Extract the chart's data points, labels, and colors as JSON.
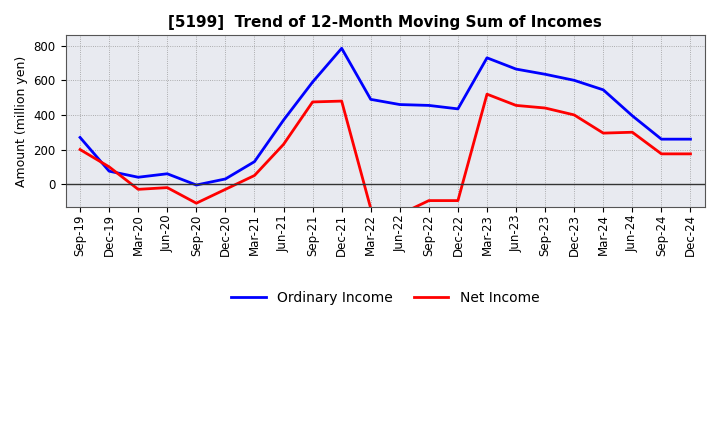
{
  "title": "[5199]  Trend of 12-Month Moving Sum of Incomes",
  "ylabel": "Amount (million yen)",
  "xlim_labels": [
    "Sep-19",
    "Dec-19",
    "Mar-20",
    "Jun-20",
    "Sep-20",
    "Dec-20",
    "Mar-21",
    "Jun-21",
    "Sep-21",
    "Dec-21",
    "Mar-22",
    "Jun-22",
    "Sep-22",
    "Dec-22",
    "Mar-23",
    "Jun-23",
    "Sep-23",
    "Dec-23",
    "Mar-24",
    "Jun-24",
    "Sep-24",
    "Dec-24"
  ],
  "ordinary_income": [
    270,
    75,
    40,
    60,
    -5,
    30,
    130,
    370,
    590,
    785,
    490,
    460,
    455,
    435,
    730,
    665,
    635,
    600,
    545,
    395,
    260,
    260
  ],
  "net_income": [
    200,
    100,
    -30,
    -20,
    -110,
    -30,
    50,
    230,
    475,
    480,
    -140,
    -175,
    -95,
    -95,
    520,
    455,
    440,
    400,
    295,
    300,
    175,
    175
  ],
  "ordinary_color": "#0000ff",
  "net_color": "#ff0000",
  "ylim": [
    -130,
    860
  ],
  "yticks": [
    0,
    200,
    400,
    600,
    800
  ],
  "background_color": "#ffffff",
  "plot_bg_color": "#e8eaf0",
  "grid_color": "#999999",
  "legend_labels": [
    "Ordinary Income",
    "Net Income"
  ],
  "zero_line_color": "#333333",
  "title_fontsize": 11,
  "axis_label_fontsize": 9,
  "tick_fontsize": 8.5,
  "legend_fontsize": 10,
  "line_width": 2.0
}
